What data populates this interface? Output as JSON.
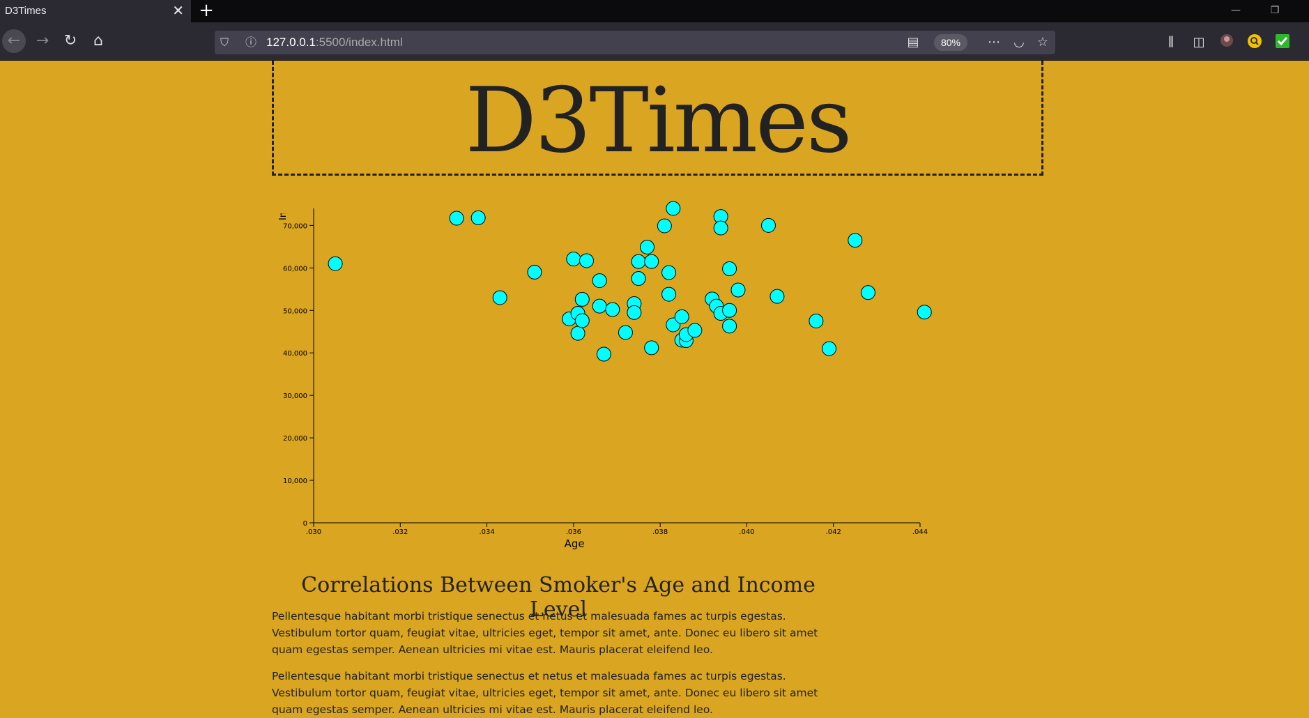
{
  "browser": {
    "tab_title": "D3Times",
    "tab_close": "✕",
    "new_tab": "+",
    "url_host": "127.0.0.1",
    "url_path": ":5500/index.html",
    "zoom": "80%",
    "minimize": "—",
    "restore": "❐"
  },
  "page": {
    "masthead": "D3Times",
    "article_title": "Correlations Between Smoker's Age and Income Level",
    "paragraphs": [
      "Pellentesque habitant morbi tristique senectus et netus et malesuada fames ac turpis egestas. Vestibulum tortor quam, feugiat vitae, ultricies eget, tempor sit amet, ante. Donec eu libero sit amet quam egestas semper. Aenean ultricies mi vitae est. Mauris placerat eleifend leo.",
      "Pellentesque habitant morbi tristique senectus et netus et malesuada fames ac turpis egestas. Vestibulum tortor quam, feugiat vitae, ultricies eget, tempor sit amet, ante. Donec eu libero sit amet quam egestas semper. Aenean ultricies mi vitae est. Mauris placerat eleifend leo."
    ]
  },
  "colors": {
    "page_background": "#daa520",
    "point_fill": "#00ffff",
    "point_stroke": "#000000",
    "text": "#222222"
  },
  "chart_data": {
    "type": "scatter",
    "xlabel": "Age",
    "ylabel": "Income",
    "xlim": [
      0.03,
      0.044
    ],
    "ylim": [
      0,
      74000
    ],
    "x_ticks": [
      ".030",
      ".032",
      ".034",
      ".036",
      ".038",
      ".040",
      ".042",
      ".044"
    ],
    "y_ticks": [
      "0",
      "10,000",
      "20,000",
      "30,000",
      "40,000",
      "50,000",
      "60,000",
      "70,000"
    ],
    "grid": false,
    "points": [
      {
        "x": 0.0305,
        "y": 61000
      },
      {
        "x": 0.0333,
        "y": 71700
      },
      {
        "x": 0.0338,
        "y": 71800
      },
      {
        "x": 0.0343,
        "y": 53000
      },
      {
        "x": 0.0351,
        "y": 59000
      },
      {
        "x": 0.0359,
        "y": 48000
      },
      {
        "x": 0.036,
        "y": 62100
      },
      {
        "x": 0.0361,
        "y": 49300
      },
      {
        "x": 0.0361,
        "y": 44600
      },
      {
        "x": 0.0362,
        "y": 52600
      },
      {
        "x": 0.0362,
        "y": 47600
      },
      {
        "x": 0.0363,
        "y": 61700
      },
      {
        "x": 0.0366,
        "y": 57000
      },
      {
        "x": 0.0366,
        "y": 51000
      },
      {
        "x": 0.0367,
        "y": 39700
      },
      {
        "x": 0.0369,
        "y": 50200
      },
      {
        "x": 0.0372,
        "y": 44800
      },
      {
        "x": 0.0374,
        "y": 51600
      },
      {
        "x": 0.0374,
        "y": 49500
      },
      {
        "x": 0.0375,
        "y": 61500
      },
      {
        "x": 0.0375,
        "y": 57500
      },
      {
        "x": 0.0377,
        "y": 64900
      },
      {
        "x": 0.0378,
        "y": 61500
      },
      {
        "x": 0.0378,
        "y": 41200
      },
      {
        "x": 0.0381,
        "y": 69900
      },
      {
        "x": 0.0382,
        "y": 58900
      },
      {
        "x": 0.0382,
        "y": 53800
      },
      {
        "x": 0.0383,
        "y": 74000
      },
      {
        "x": 0.0383,
        "y": 46600
      },
      {
        "x": 0.0385,
        "y": 48500
      },
      {
        "x": 0.0385,
        "y": 43000
      },
      {
        "x": 0.0386,
        "y": 42900
      },
      {
        "x": 0.0386,
        "y": 44300
      },
      {
        "x": 0.0388,
        "y": 45300
      },
      {
        "x": 0.0392,
        "y": 52700
      },
      {
        "x": 0.0393,
        "y": 51000
      },
      {
        "x": 0.0394,
        "y": 72100
      },
      {
        "x": 0.0394,
        "y": 69400
      },
      {
        "x": 0.0394,
        "y": 49300
      },
      {
        "x": 0.0396,
        "y": 59800
      },
      {
        "x": 0.0396,
        "y": 50000
      },
      {
        "x": 0.0396,
        "y": 46300
      },
      {
        "x": 0.0398,
        "y": 54800
      },
      {
        "x": 0.0405,
        "y": 70000
      },
      {
        "x": 0.0407,
        "y": 53300
      },
      {
        "x": 0.0416,
        "y": 47500
      },
      {
        "x": 0.0419,
        "y": 41000
      },
      {
        "x": 0.0425,
        "y": 66500
      },
      {
        "x": 0.0428,
        "y": 54200
      },
      {
        "x": 0.0441,
        "y": 49600
      }
    ]
  }
}
